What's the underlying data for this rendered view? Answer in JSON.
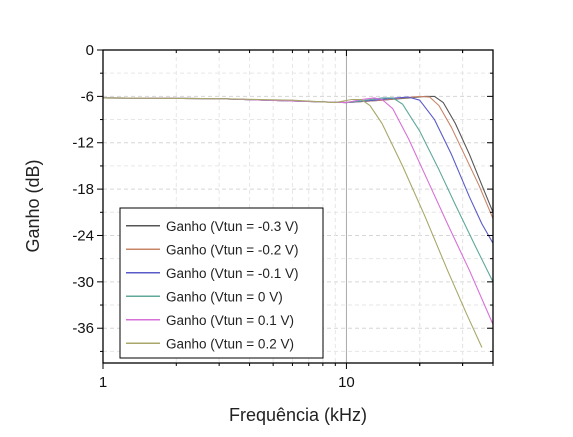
{
  "chart_data": {
    "type": "line",
    "xlabel": "Frequência (kHz)",
    "ylabel": "Ganho (dB)",
    "x_scale": "log",
    "xlim": [
      1,
      40
    ],
    "ylim": [
      -40.5,
      0
    ],
    "x_ticks": [
      1,
      10
    ],
    "x_tick_labels": [
      "1",
      "10"
    ],
    "y_ticks": [
      0,
      -6,
      -12,
      -18,
      -24,
      -30,
      -36
    ],
    "y_tick_labels": [
      "0",
      "-6",
      "-12",
      "-18",
      "-24",
      "-30",
      "-36"
    ],
    "grid": true,
    "legend_position": "bottom-left",
    "series": [
      {
        "name": "Ganho (Vtun = -0.3 V)",
        "color": "#555555",
        "x": [
          1,
          3,
          6,
          10,
          14,
          18,
          21,
          23,
          25,
          28,
          32,
          36,
          40
        ],
        "y": [
          -6.2,
          -6.3,
          -6.6,
          -6.8,
          -6.5,
          -6.2,
          -6.0,
          -6.0,
          -6.8,
          -9.5,
          -13.5,
          -17.5,
          -21.0
        ]
      },
      {
        "name": "Ganho (Vtun = -0.2 V)",
        "color": "#c8856a",
        "x": [
          1,
          3,
          6,
          10,
          14,
          17,
          20,
          22,
          24,
          27,
          31,
          35,
          40
        ],
        "y": [
          -6.2,
          -6.3,
          -6.6,
          -6.8,
          -6.5,
          -6.2,
          -6.0,
          -6.1,
          -7.2,
          -10.0,
          -14.0,
          -17.5,
          -21.8
        ]
      },
      {
        "name": "Ganho (Vtun = -0.1 V)",
        "color": "#5a5ac8",
        "x": [
          1,
          3,
          6,
          10,
          13,
          16,
          18,
          20,
          23,
          27,
          32,
          36,
          40
        ],
        "y": [
          -6.2,
          -6.3,
          -6.6,
          -6.8,
          -6.5,
          -6.2,
          -6.1,
          -6.5,
          -9.0,
          -13.5,
          -19.0,
          -22.5,
          -25.0
        ]
      },
      {
        "name": "Ganho (Vtun = 0 V)",
        "color": "#5fa89a",
        "x": [
          1,
          3,
          6,
          10,
          12,
          14,
          15.5,
          17,
          20,
          24,
          28,
          34,
          40
        ],
        "y": [
          -6.2,
          -6.3,
          -6.6,
          -6.8,
          -6.5,
          -6.2,
          -6.2,
          -7.0,
          -10.5,
          -15.5,
          -20.0,
          -25.5,
          -30.0
        ]
      },
      {
        "name": "Ganho (Vtun = 0.1 V)",
        "color": "#d870d8",
        "x": [
          1,
          3,
          6,
          10,
          11.5,
          13,
          14,
          15.5,
          18,
          22,
          26,
          32,
          40
        ],
        "y": [
          -6.2,
          -6.3,
          -6.6,
          -6.8,
          -6.4,
          -6.2,
          -6.4,
          -7.6,
          -11.5,
          -17.5,
          -22.5,
          -28.5,
          -35.5
        ]
      },
      {
        "name": "Ganho (Vtun = 0.2 V)",
        "color": "#a8a86a",
        "x": [
          1,
          3,
          6,
          9,
          10.5,
          11.5,
          12.5,
          14,
          17,
          21,
          26,
          31,
          36
        ],
        "y": [
          -6.2,
          -6.3,
          -6.5,
          -6.8,
          -6.4,
          -6.4,
          -7.2,
          -9.5,
          -15.0,
          -21.5,
          -28.5,
          -34.0,
          -38.5
        ]
      }
    ]
  }
}
